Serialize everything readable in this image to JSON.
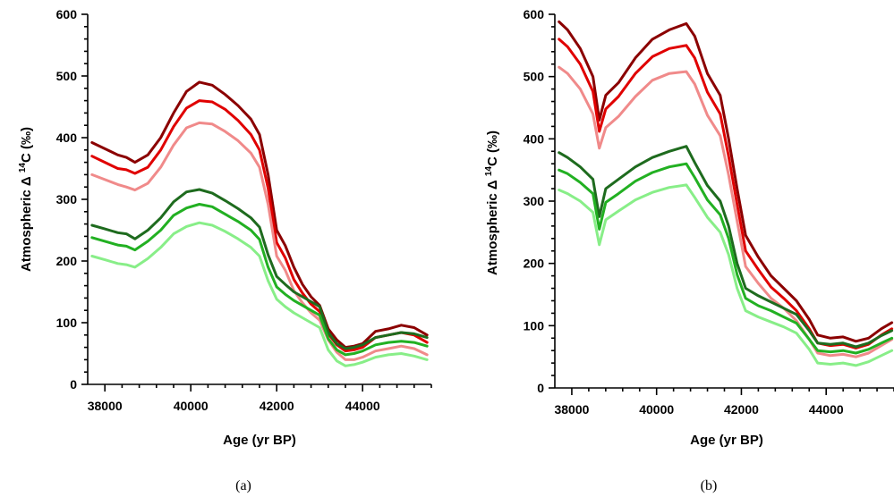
{
  "chart_data": [
    {
      "type": "line",
      "panel_label": "(a)",
      "xlabel": "Age (yr BP)",
      "ylabel_main": "Atmospheric Δ",
      "ylabel_sup": "14",
      "ylabel_tail": "C (‰)",
      "xlim": [
        37600,
        45600
      ],
      "ylim": [
        0,
        600
      ],
      "x_ticks": [
        38000,
        40000,
        42000,
        44000
      ],
      "y_ticks": [
        0,
        100,
        200,
        300,
        400,
        500,
        600
      ],
      "x": [
        37700,
        38000,
        38300,
        38500,
        38700,
        39000,
        39300,
        39600,
        39900,
        40200,
        40500,
        40800,
        41100,
        41400,
        41600,
        41800,
        42000,
        42200,
        42400,
        42600,
        42800,
        43000,
        43200,
        43400,
        43600,
        43800,
        44000,
        44300,
        44600,
        44900,
        45200,
        45500
      ],
      "series": [
        {
          "color": "#8b0000",
          "values": [
            392,
            382,
            372,
            368,
            360,
            372,
            400,
            440,
            475,
            490,
            485,
            470,
            452,
            430,
            405,
            340,
            250,
            225,
            190,
            162,
            142,
            128,
            90,
            72,
            60,
            62,
            66,
            86,
            90,
            96,
            92,
            80
          ]
        },
        {
          "color": "#e00000",
          "values": [
            370,
            360,
            350,
            348,
            342,
            352,
            380,
            418,
            448,
            460,
            458,
            446,
            428,
            405,
            380,
            318,
            230,
            205,
            170,
            148,
            130,
            118,
            82,
            64,
            54,
            56,
            60,
            76,
            80,
            84,
            80,
            68
          ]
        },
        {
          "color": "#f08a8a",
          "values": [
            340,
            332,
            324,
            320,
            315,
            326,
            352,
            388,
            416,
            424,
            422,
            410,
            395,
            375,
            352,
            292,
            208,
            185,
            152,
            132,
            116,
            104,
            72,
            52,
            40,
            40,
            44,
            54,
            58,
            62,
            58,
            48
          ]
        },
        {
          "color": "#1e6b1e",
          "values": [
            258,
            252,
            246,
            244,
            236,
            250,
            270,
            296,
            312,
            316,
            310,
            298,
            285,
            270,
            255,
            210,
            175,
            162,
            150,
            142,
            134,
            126,
            84,
            66,
            58,
            60,
            64,
            76,
            80,
            84,
            82,
            76
          ]
        },
        {
          "color": "#22b022",
          "values": [
            238,
            232,
            226,
            224,
            218,
            232,
            250,
            274,
            286,
            292,
            288,
            276,
            264,
            250,
            235,
            190,
            158,
            146,
            136,
            128,
            120,
            112,
            74,
            56,
            48,
            50,
            54,
            64,
            68,
            70,
            68,
            62
          ]
        },
        {
          "color": "#88ee88",
          "values": [
            208,
            202,
            196,
            194,
            190,
            204,
            222,
            244,
            256,
            262,
            258,
            248,
            236,
            222,
            208,
            168,
            138,
            126,
            116,
            108,
            100,
            92,
            56,
            38,
            30,
            32,
            36,
            44,
            48,
            50,
            46,
            40
          ]
        }
      ]
    },
    {
      "type": "line",
      "panel_label": "(b)",
      "xlabel": "Age (yr BP)",
      "ylabel_main": "Atmospheric Δ",
      "ylabel_sup": "14",
      "ylabel_tail": "C (‰)",
      "xlim": [
        37600,
        45600
      ],
      "ylim": [
        0,
        600
      ],
      "x_ticks": [
        38000,
        40000,
        42000,
        44000
      ],
      "y_ticks": [
        0,
        100,
        200,
        300,
        400,
        500,
        600
      ],
      "x": [
        37700,
        37900,
        38200,
        38500,
        38650,
        38800,
        39100,
        39500,
        39900,
        40300,
        40700,
        40900,
        41200,
        41500,
        41700,
        41900,
        42100,
        42400,
        42700,
        43000,
        43300,
        43600,
        43800,
        44100,
        44400,
        44700,
        45000,
        45300,
        45550
      ],
      "series": [
        {
          "color": "#8b0000",
          "values": [
            588,
            575,
            545,
            500,
            430,
            470,
            490,
            530,
            560,
            575,
            585,
            565,
            505,
            470,
            400,
            320,
            245,
            210,
            180,
            160,
            140,
            110,
            85,
            80,
            82,
            75,
            80,
            95,
            105
          ]
        },
        {
          "color": "#e00000",
          "values": [
            560,
            548,
            520,
            476,
            412,
            448,
            468,
            505,
            532,
            545,
            550,
            530,
            475,
            440,
            372,
            295,
            220,
            190,
            162,
            144,
            124,
            95,
            72,
            68,
            70,
            64,
            70,
            85,
            95
          ]
        },
        {
          "color": "#f08a8a",
          "values": [
            515,
            505,
            480,
            440,
            385,
            418,
            436,
            468,
            494,
            505,
            508,
            488,
            438,
            405,
            342,
            268,
            195,
            168,
            144,
            128,
            108,
            78,
            56,
            52,
            54,
            50,
            56,
            68,
            78
          ]
        },
        {
          "color": "#1e6b1e",
          "values": [
            378,
            370,
            355,
            335,
            275,
            320,
            335,
            355,
            370,
            380,
            388,
            362,
            325,
            300,
            260,
            200,
            160,
            148,
            138,
            128,
            118,
            92,
            72,
            70,
            72,
            66,
            72,
            84,
            92
          ]
        },
        {
          "color": "#22b022",
          "values": [
            350,
            344,
            330,
            312,
            255,
            298,
            312,
            332,
            346,
            355,
            360,
            338,
            302,
            278,
            240,
            182,
            144,
            132,
            124,
            114,
            104,
            78,
            60,
            58,
            60,
            56,
            62,
            72,
            80
          ]
        },
        {
          "color": "#88ee88",
          "values": [
            318,
            312,
            300,
            282,
            230,
            270,
            284,
            302,
            314,
            322,
            326,
            306,
            274,
            250,
            214,
            160,
            124,
            114,
            106,
            98,
            88,
            62,
            40,
            38,
            40,
            36,
            42,
            52,
            60
          ]
        }
      ]
    }
  ]
}
